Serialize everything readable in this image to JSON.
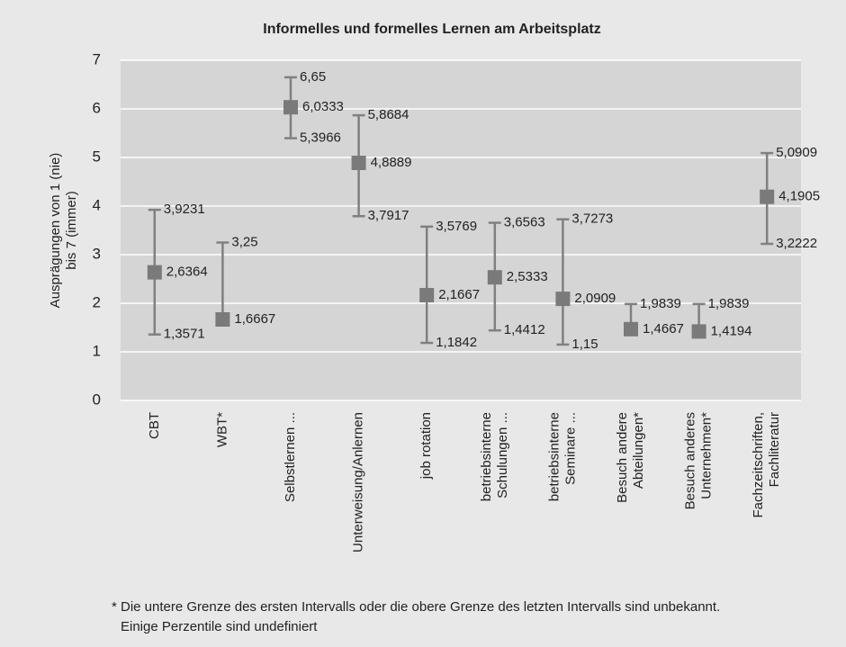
{
  "chart_data": {
    "type": "errorbar",
    "title": "Informelles und formelles Lernen am Arbeitsplatz",
    "y_label": [
      "Ausprägungen von 1 (nie)",
      "bis 7 (immer)"
    ],
    "categories": [
      [
        "CBT"
      ],
      [
        "WBT*"
      ],
      [
        "Selbstlernen ..."
      ],
      [
        "Unterweisung/Anlernen"
      ],
      [
        "job rotation"
      ],
      [
        "betriebsinterne",
        "Schulungen ..."
      ],
      [
        "betriebsinterne",
        "Seminare ..."
      ],
      [
        "Besuch andere",
        "Abteilungen*"
      ],
      [
        "Besuch anderes",
        "Unternehmen*"
      ],
      [
        "Fachzeitschriften,",
        "Fachliteratur"
      ]
    ],
    "values": [
      2.6364,
      1.6667,
      6.0333,
      4.8889,
      2.1667,
      2.5333,
      2.0909,
      1.4667,
      1.4194,
      4.1905
    ],
    "value_labels": [
      "2,6364",
      "1,6667",
      "6,0333",
      "4,8889",
      "2,1667",
      "2,5333",
      "2,0909",
      "1,4667",
      "1,4194",
      "4,1905"
    ],
    "lows": [
      1.3571,
      null,
      5.3966,
      3.7917,
      1.1842,
      1.4412,
      1.15,
      null,
      null,
      3.2222
    ],
    "low_labels": [
      "1,3571",
      null,
      "5,3966",
      "3,7917",
      "1,1842",
      "1,4412",
      "1,15",
      null,
      null,
      "3,2222"
    ],
    "highs": [
      3.9231,
      3.25,
      6.65,
      5.8684,
      3.5769,
      3.6563,
      3.7273,
      1.9839,
      1.9839,
      5.0909
    ],
    "high_labels": [
      "3,9231",
      "3,25",
      "6,65",
      "5,8684",
      "3,5769",
      "3,6563",
      "3,7273",
      "1,9839",
      "1,9839",
      "5,0909"
    ],
    "color": "#808080",
    "ylim": [
      0,
      7
    ],
    "yticks": [
      0,
      1,
      2,
      3,
      4,
      5,
      6,
      7
    ],
    "grid": true,
    "footnote": [
      "* Die untere Grenze des ersten Intervalls oder die obere Grenze des letzten Intervalls sind unbekannt.",
      "Einige Perzentile sind undefiniert"
    ]
  }
}
